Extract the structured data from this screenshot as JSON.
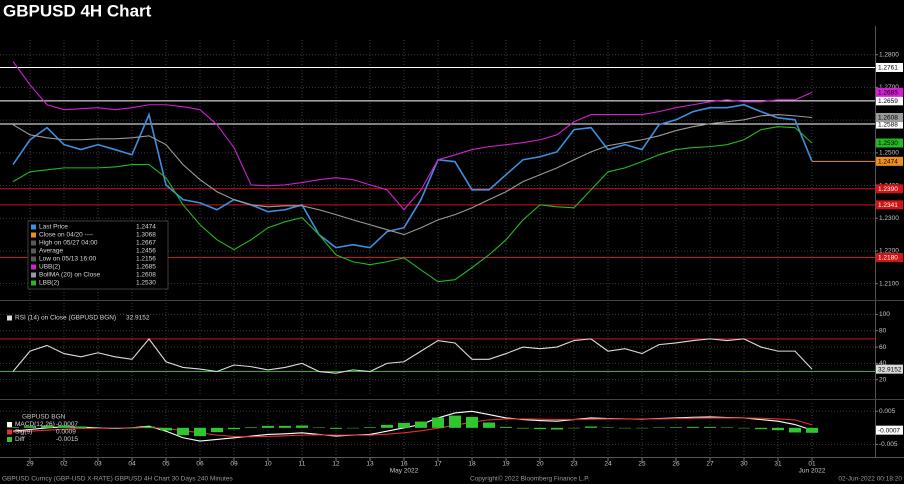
{
  "title": "GBPUSD 4H Chart",
  "chart_data": [
    {
      "type": "line",
      "categories": [
        null,
        "29",
        null,
        "02",
        null,
        "03",
        null,
        "04",
        null,
        "05",
        null,
        "06",
        null,
        "09",
        null,
        "10",
        null,
        "11",
        null,
        "12",
        null,
        "13",
        null,
        "16",
        null,
        "17",
        null,
        "18",
        null,
        "19",
        null,
        "20",
        null,
        "23",
        null,
        "24",
        null,
        "25",
        null,
        "26",
        null,
        "27",
        null,
        "30",
        null,
        "31",
        null,
        "01"
      ],
      "ylim": [
        1.205,
        1.2845
      ],
      "yticks": [
        {
          "value": 1.21,
          "label": "1.2100"
        },
        {
          "value": 1.22,
          "label": "1.2200"
        },
        {
          "value": 1.23,
          "label": "1.2300"
        },
        {
          "value": 1.24,
          "label": "1.2400"
        },
        {
          "value": 1.25,
          "label": "1.2500"
        },
        {
          "value": 1.26,
          "label": "1.2600"
        },
        {
          "value": 1.27,
          "label": "1.2700"
        },
        {
          "value": 1.28,
          "label": "1.2800"
        }
      ],
      "grid": true,
      "hlines": [
        {
          "value": 1.2761,
          "label": "1.2761",
          "color": "#ffffff",
          "text_color": "#000000"
        },
        {
          "value": 1.2659,
          "label": "1.2659",
          "color": "#ffffff",
          "text_color": "#000000"
        },
        {
          "value": 1.2588,
          "label": "1.2588",
          "color": "#ffffff",
          "text_color": "#000000"
        },
        {
          "value": 1.239,
          "label": "1.2390",
          "color": "#d01414",
          "text_color": "#ffffff"
        },
        {
          "value": 1.2341,
          "label": "1.2341",
          "color": "#d01414",
          "text_color": "#ffffff"
        },
        {
          "value": 1.218,
          "label": "1.2180",
          "color": "#d01414",
          "text_color": "#ffffff"
        }
      ],
      "series": [
        {
          "name": "Last Price",
          "color": "#3d8fe0",
          "last": 1.2474,
          "last_color": "#f0901c",
          "values": [
            1.2464,
            1.254,
            1.2577,
            1.2525,
            1.251,
            1.2525,
            1.251,
            1.2494,
            1.2617,
            1.2402,
            1.2357,
            1.2347,
            1.2326,
            1.2357,
            1.2341,
            1.232,
            1.2326,
            1.2341,
            1.225,
            1.221,
            1.2219,
            1.221,
            1.2259,
            1.2271,
            1.2357,
            1.2479,
            1.2473,
            1.2387,
            1.2387,
            1.2433,
            1.2479,
            1.2488,
            1.2503,
            1.2571,
            1.2577,
            1.251,
            1.2525,
            1.251,
            1.2586,
            1.2601,
            1.2626,
            1.2638,
            1.2638,
            1.2647,
            1.2626,
            1.2607,
            1.2601,
            1.2474
          ]
        },
        {
          "name": "UBB(2)",
          "color": "#d21fd2",
          "last": 1.2685,
          "values": [
            1.2779,
            1.2708,
            1.2647,
            1.2632,
            1.2635,
            1.2638,
            1.2632,
            1.2638,
            1.2647,
            1.2647,
            1.2641,
            1.2632,
            1.2586,
            1.2516,
            1.2402,
            1.2399,
            1.2402,
            1.2409,
            1.2418,
            1.2424,
            1.2418,
            1.2402,
            1.2387,
            1.2326,
            1.2387,
            1.2479,
            1.2494,
            1.251,
            1.2519,
            1.2525,
            1.2531,
            1.254,
            1.2555,
            1.2595,
            1.2617,
            1.2617,
            1.2617,
            1.2617,
            1.2626,
            1.2638,
            1.2647,
            1.2656,
            1.2662,
            1.2656,
            1.2656,
            1.2662,
            1.2662,
            1.2685
          ]
        },
        {
          "name": "BollMA (20) on Close",
          "color": "#9a9a9a",
          "last": 1.2608,
          "values": [
            1.2586,
            1.2555,
            1.2546,
            1.254,
            1.254,
            1.2543,
            1.2543,
            1.2546,
            1.2552,
            1.2525,
            1.2464,
            1.2418,
            1.2381,
            1.2357,
            1.2341,
            1.2335,
            1.2338,
            1.2338,
            1.2326,
            1.2311,
            1.2295,
            1.228,
            1.2265,
            1.225,
            1.2271,
            1.2295,
            1.2311,
            1.2332,
            1.2357,
            1.2381,
            1.2412,
            1.2433,
            1.2454,
            1.2479,
            1.2503,
            1.2522,
            1.2531,
            1.254,
            1.2552,
            1.2568,
            1.258,
            1.2589,
            1.2595,
            1.2601,
            1.2613,
            1.2617,
            1.2613,
            1.2608
          ]
        },
        {
          "name": "LBB(2)",
          "color": "#22b922",
          "last": 1.253,
          "last_label": "1.2530",
          "values": [
            1.2412,
            1.2442,
            1.2448,
            1.2454,
            1.2454,
            1.2454,
            1.2457,
            1.2464,
            1.2464,
            1.2424,
            1.2341,
            1.228,
            1.2234,
            1.2204,
            1.2234,
            1.2271,
            1.2289,
            1.2302,
            1.225,
            1.2188,
            1.2167,
            1.2158,
            1.2167,
            1.2179,
            1.2142,
            1.2106,
            1.2112,
            1.2149,
            1.2188,
            1.2234,
            1.2295,
            1.2341,
            1.2335,
            1.2332,
            1.2387,
            1.2442,
            1.2454,
            1.2473,
            1.2494,
            1.251,
            1.2516,
            1.2519,
            1.2525,
            1.254,
            1.2571,
            1.258,
            1.2577,
            1.253
          ]
        }
      ],
      "stats": [
        {
          "name": "Close on 04/20 ----",
          "value": 1.3068,
          "color": "#f0901c"
        },
        {
          "name": "High on 05/27 04:00",
          "value": 1.2667,
          "color": "#5a5a5a"
        },
        {
          "name": "Average",
          "value": 1.2456,
          "color": "#5a5a5a"
        },
        {
          "name": "Low on 05/13 16:00",
          "value": 1.2156,
          "color": "#5a5a5a"
        }
      ]
    },
    {
      "type": "line",
      "categories": [
        null,
        "29",
        null,
        "02",
        null,
        "03",
        null,
        "04",
        null,
        "05",
        null,
        "06",
        null,
        "09",
        null,
        "10",
        null,
        "11",
        null,
        "12",
        null,
        "13",
        null,
        "16",
        null,
        "17",
        null,
        "18",
        null,
        "19",
        null,
        "20",
        null,
        "23",
        null,
        "24",
        null,
        "25",
        null,
        "26",
        null,
        "27",
        null,
        "30",
        null,
        "31",
        null,
        "01"
      ],
      "ylim": [
        0,
        114
      ],
      "yticks": [
        20,
        40,
        60,
        80,
        100
      ],
      "grid": true,
      "hlines": [
        {
          "value": 70,
          "label": "70",
          "color": "#d01414"
        },
        {
          "value": 30,
          "label": "30",
          "color": "#22b922"
        }
      ],
      "series": [
        {
          "name": "RSI (14) on Close (GBPUSD BGN)",
          "color": "#dcdcdc",
          "last": 32.9152,
          "values": [
            30,
            55,
            62,
            52,
            48,
            53,
            48,
            45,
            70,
            42,
            35,
            33,
            30,
            38,
            36,
            32,
            35,
            40,
            30,
            28,
            32,
            30,
            40,
            42,
            55,
            68,
            65,
            45,
            45,
            52,
            60,
            58,
            60,
            68,
            70,
            55,
            58,
            52,
            63,
            65,
            68,
            70,
            68,
            70,
            60,
            55,
            55,
            32.9152
          ]
        }
      ]
    },
    {
      "type": "line",
      "legend_title": "GBPUSD BGN",
      "categories": [
        null,
        "29",
        null,
        "02",
        null,
        "03",
        null,
        "04",
        null,
        "05",
        null,
        "06",
        null,
        "09",
        null,
        "10",
        null,
        "11",
        null,
        "12",
        null,
        "13",
        null,
        "16",
        null,
        "17",
        null,
        "18",
        null,
        "19",
        null,
        "20",
        null,
        "23",
        null,
        "24",
        null,
        "25",
        null,
        "26",
        null,
        "27",
        null,
        "30",
        null,
        "31",
        null,
        "01"
      ],
      "months": [
        "May 2022",
        "Jun 2022"
      ],
      "ylim": [
        -0.0085,
        0.0075
      ],
      "yticks": [
        -0.005,
        0.005
      ],
      "grid": true,
      "series": [
        {
          "name": "MACD(12,26)",
          "color": "#ffffff",
          "last": -0.0007,
          "values": [
            -0.001,
            -0.0005,
            0.0,
            0.0003,
            0.0002,
            0.0,
            -0.0002,
            0.0,
            0.0005,
            -0.001,
            -0.003,
            -0.004,
            -0.0035,
            -0.003,
            -0.0025,
            -0.002,
            -0.0018,
            -0.0015,
            -0.002,
            -0.0025,
            -0.0022,
            -0.002,
            -0.001,
            0.0,
            0.001,
            0.003,
            0.0045,
            0.005,
            0.004,
            0.003,
            0.0025,
            0.0022,
            0.002,
            0.0025,
            0.003,
            0.0028,
            0.0027,
            0.0026,
            0.0028,
            0.003,
            0.0032,
            0.0033,
            0.0031,
            0.003,
            0.0025,
            0.002,
            0.001,
            -0.0007
          ]
        },
        {
          "name": "Sig(9)",
          "color": "#e03030",
          "last": 0.0009,
          "tag": false,
          "values": [
            -0.0012,
            -0.001,
            -0.0007,
            -0.0004,
            -0.0002,
            -0.0001,
            -0.0001,
            0.0,
            0.0001,
            -0.0002,
            -0.0008,
            -0.0015,
            -0.0022,
            -0.0026,
            -0.0027,
            -0.0026,
            -0.0024,
            -0.0022,
            -0.0021,
            -0.0022,
            -0.0022,
            -0.0022,
            -0.0019,
            -0.0015,
            -0.0009,
            -0.0001,
            0.0008,
            0.0017,
            0.0024,
            0.0027,
            0.0027,
            0.0026,
            0.0025,
            0.0025,
            0.0026,
            0.0027,
            0.0027,
            0.0027,
            0.0027,
            0.0028,
            0.0029,
            0.003,
            0.003,
            0.003,
            0.0029,
            0.0027,
            0.0024,
            0.0009
          ]
        },
        {
          "name": "Diff",
          "color": "#2ec82e",
          "type": "bar",
          "last": -0.0015,
          "tag": false,
          "values": [
            0.0002,
            0.0005,
            0.0007,
            0.0007,
            0.0004,
            0.0001,
            -0.0001,
            0.0,
            0.0004,
            -0.0008,
            -0.0022,
            -0.0025,
            -0.0013,
            -0.0004,
            0.0002,
            0.0006,
            0.0006,
            0.0007,
            0.0001,
            -0.0003,
            0.0,
            0.0002,
            0.0009,
            0.0015,
            0.0019,
            0.0031,
            0.0037,
            0.0033,
            0.0016,
            0.0003,
            -0.0002,
            -0.0004,
            -0.0005,
            0.0,
            0.0004,
            0.0001,
            0.0,
            -0.0001,
            0.0001,
            0.0002,
            0.0003,
            0.0003,
            0.0001,
            0.0,
            -0.0004,
            -0.0007,
            -0.0014,
            -0.0015
          ]
        }
      ]
    }
  ],
  "footer": {
    "left": "GBPUSD Curncy (GBP-USD X-RATE) GBPUSD 4H Chart 30 Days 240 Minutes",
    "center": "Copyright© 2022 Bloomberg Finance L.P.",
    "right": "02-Jun-2022 00:18:20"
  }
}
